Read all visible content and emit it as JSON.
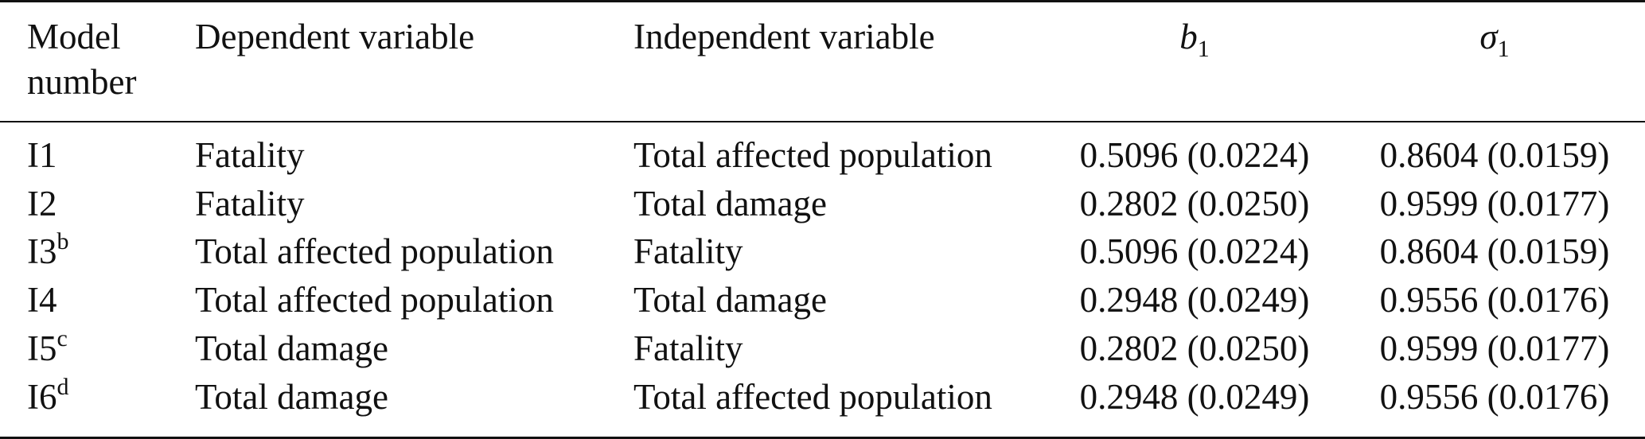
{
  "table": {
    "headers": {
      "model_number_line1": "Model",
      "model_number_line2": "number",
      "dependent_variable": "Dependent variable",
      "independent_variable": "Independent variable",
      "b1_symbol": "b",
      "b1_subscript": "1",
      "sigma1_symbol": "σ",
      "sigma1_subscript": "1"
    },
    "rows": [
      {
        "model": "I1",
        "footnote": "",
        "dependent": "Fatality",
        "independent": "Total affected population",
        "b1": "0.5096 (0.0224)",
        "sigma1": "0.8604 (0.0159)"
      },
      {
        "model": "I2",
        "footnote": "",
        "dependent": "Fatality",
        "independent": "Total damage",
        "b1": "0.2802 (0.0250)",
        "sigma1": "0.9599 (0.0177)"
      },
      {
        "model": "I3",
        "footnote": "b",
        "dependent": "Total affected population",
        "independent": "Fatality",
        "b1": "0.5096 (0.0224)",
        "sigma1": "0.8604 (0.0159)"
      },
      {
        "model": "I4",
        "footnote": "",
        "dependent": "Total affected population",
        "independent": "Total damage",
        "b1": "0.2948 (0.0249)",
        "sigma1": "0.9556 (0.0176)"
      },
      {
        "model": "I5",
        "footnote": "c",
        "dependent": "Total damage",
        "independent": "Fatality",
        "b1": "0.2802 (0.0250)",
        "sigma1": "0.9599 (0.0177)"
      },
      {
        "model": "I6",
        "footnote": "d",
        "dependent": "Total damage",
        "independent": "Total affected population",
        "b1": "0.2948 (0.0249)",
        "sigma1": "0.9556 (0.0176)"
      }
    ]
  }
}
